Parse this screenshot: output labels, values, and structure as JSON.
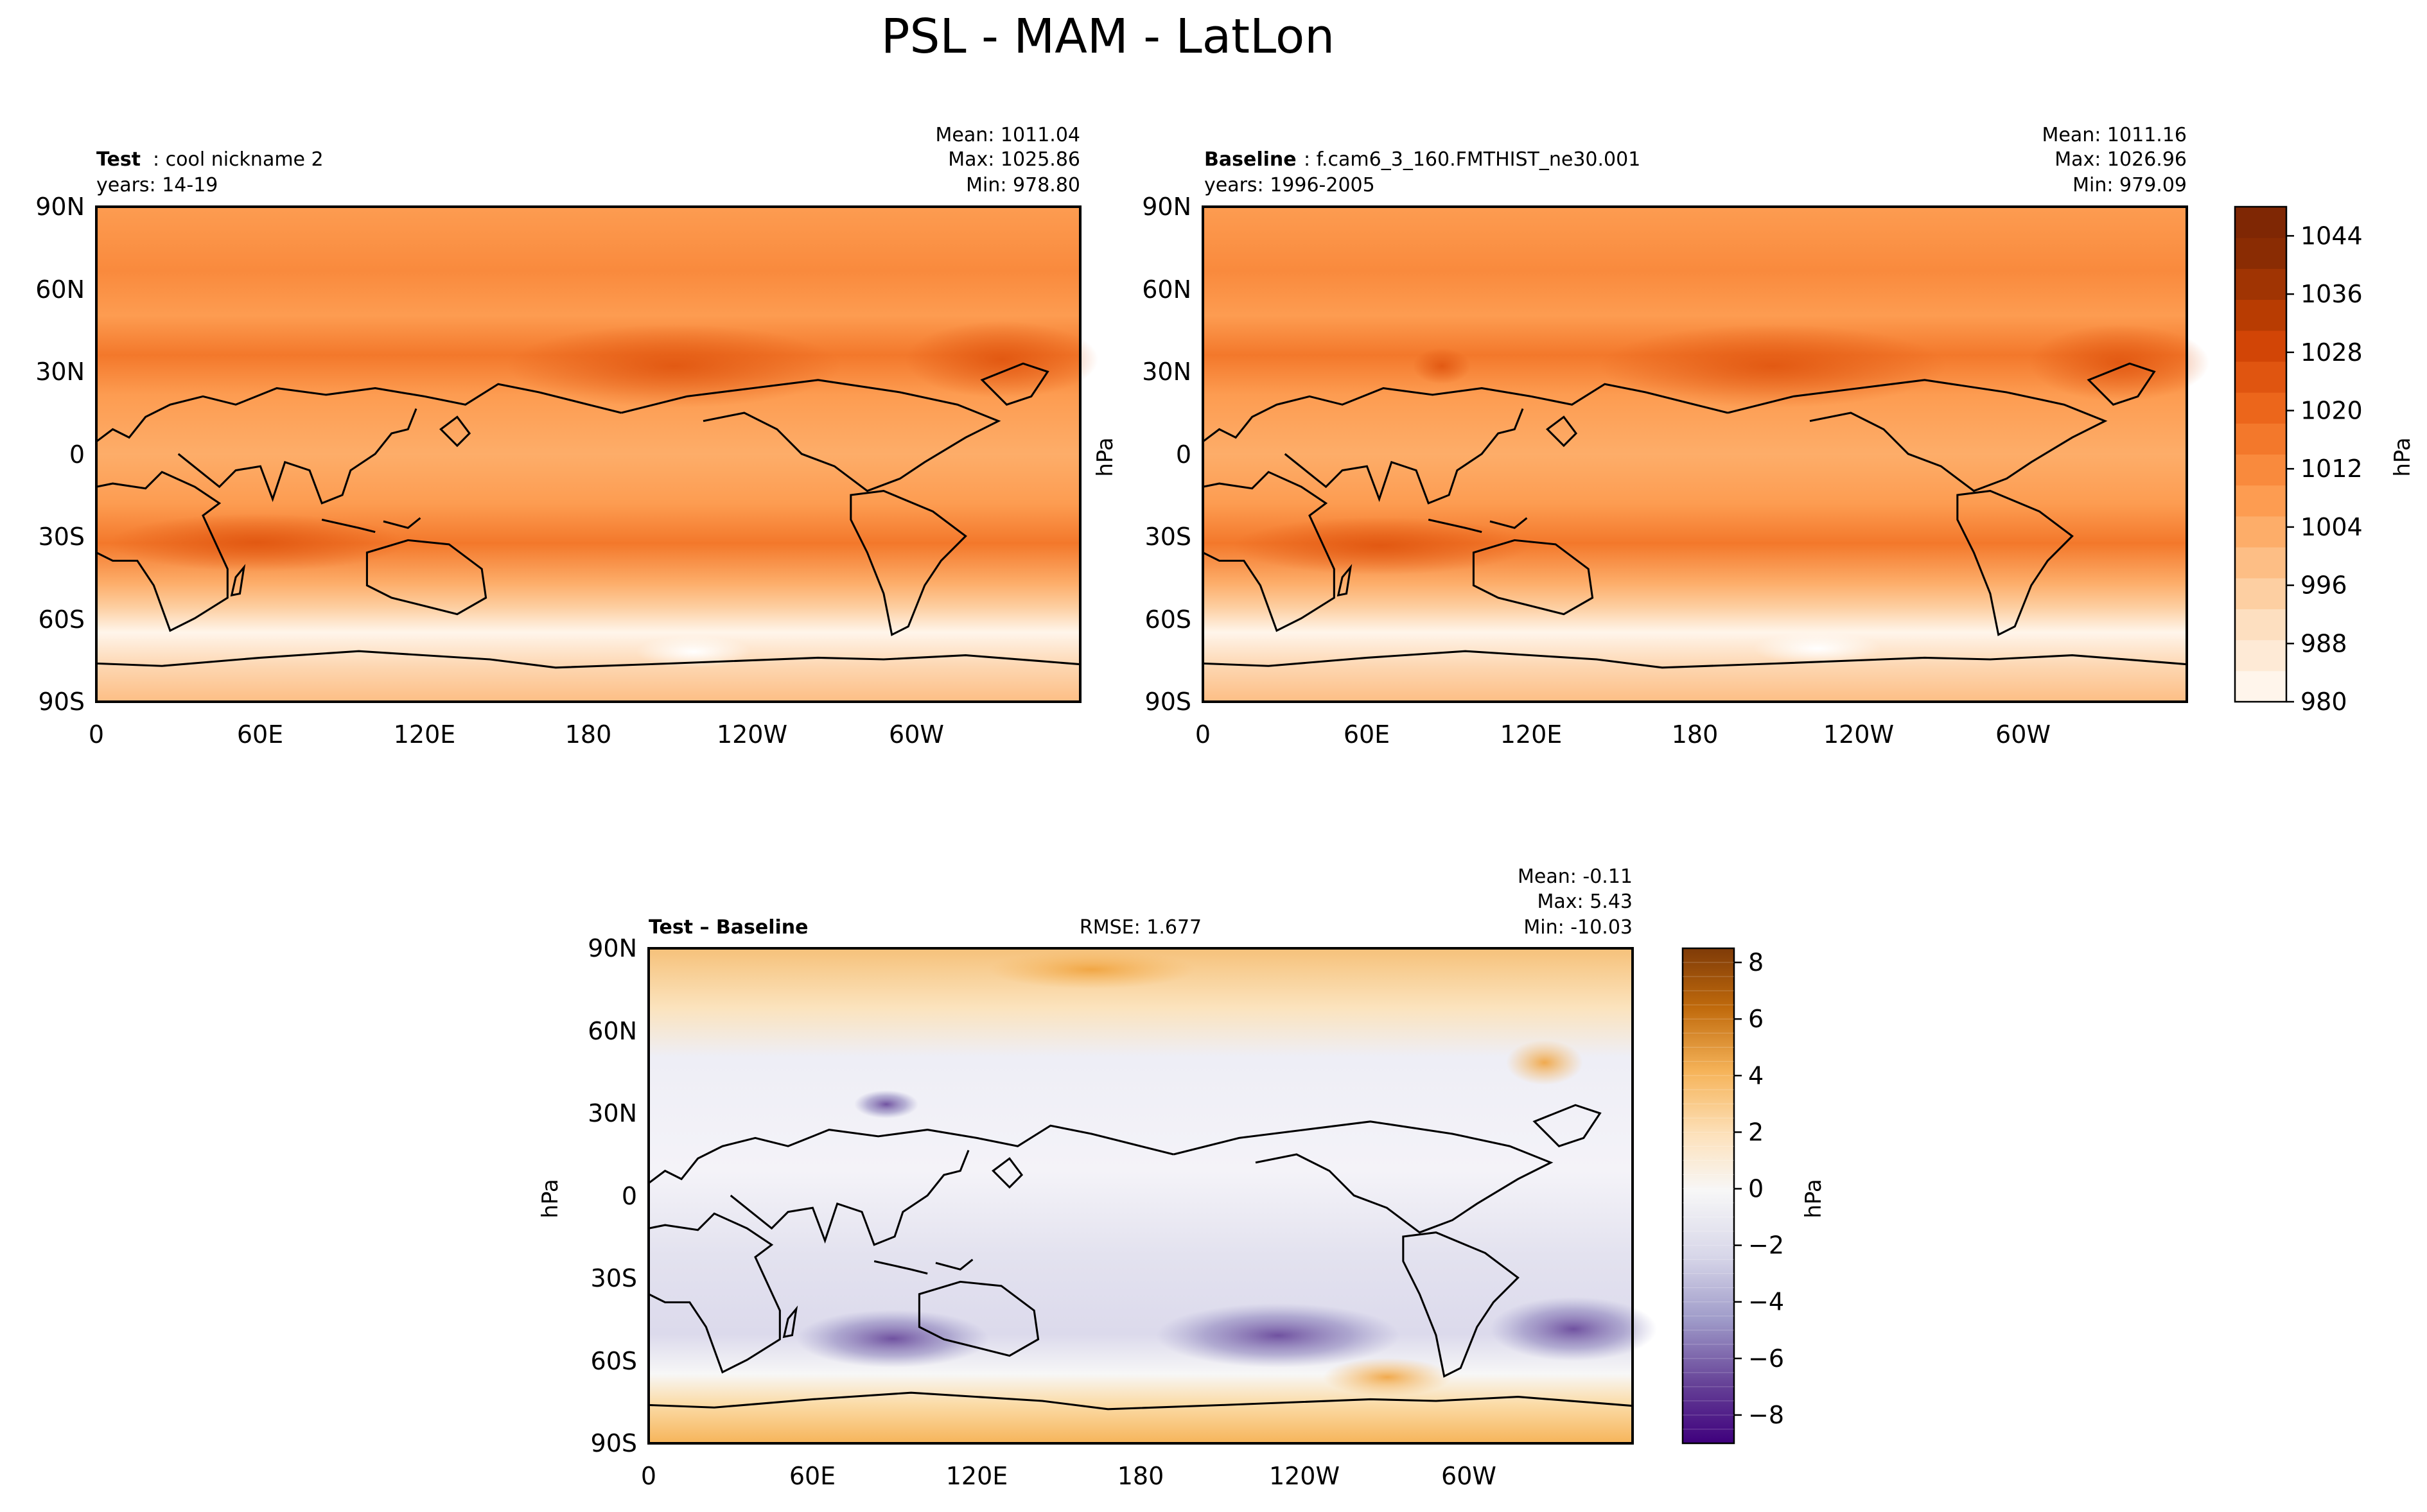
{
  "figure_title": "PSL - MAM - LatLon",
  "colors": {
    "orange_scale": [
      "#fff5eb",
      "#feead6",
      "#fddfc0",
      "#fdcfa2",
      "#fdbe85",
      "#fdad69",
      "#fd9c51",
      "#f98a3d",
      "#f3782b",
      "#ec661b",
      "#e05510",
      "#d24506",
      "#b83c02",
      "#a03403",
      "#8a2c03",
      "#7f2704"
    ],
    "diff_scale": {
      "neg_max": "#3f007d",
      "neg_mid": "#9f9bc9",
      "zero": "#f7f7f7",
      "pos_mid": "#f6b45a",
      "pos_max": "#7f3b08"
    },
    "coast": "#000000"
  },
  "chart_data": [
    {
      "type": "heatmap",
      "panel": "test",
      "label_bold": "Test",
      "label_text": ": cool nickname 2",
      "years": "years: 14-19",
      "stats": {
        "mean": "Mean: 1011.04",
        "max": "Max: 1025.86",
        "min": "Min: 978.80"
      },
      "x_ticks": [
        "0",
        "60E",
        "120E",
        "180",
        "120W",
        "60W"
      ],
      "y_ticks": [
        "90N",
        "60N",
        "30N",
        "0",
        "30S",
        "60S",
        "90S"
      ],
      "field": "PSL (hPa)"
    },
    {
      "type": "heatmap",
      "panel": "baseline",
      "label_bold": "Baseline",
      "label_text": ": f.cam6_3_160.FMTHIST_ne30.001",
      "years": "years: 1996-2005",
      "stats": {
        "mean": "Mean: 1011.16",
        "max": "Max: 1026.96",
        "min": "Min: 979.09"
      },
      "x_ticks": [
        "0",
        "60E",
        "120E",
        "180",
        "120W",
        "60W"
      ],
      "y_ticks": [
        "90N",
        "60N",
        "30N",
        "0",
        "30S",
        "60S",
        "90S"
      ],
      "colorbar": {
        "label": "hPa",
        "range": [
          980,
          1048
        ],
        "ticks": [
          "980",
          "988",
          "996",
          "1004",
          "1012",
          "1020",
          "1028",
          "1036",
          "1044"
        ]
      }
    },
    {
      "type": "heatmap",
      "panel": "difference",
      "label_bold": "Test – Baseline",
      "rmse": "RMSE: 1.677",
      "stats": {
        "mean": "Mean: -0.11",
        "max": "Max:  5.43",
        "min": "Min: -10.03"
      },
      "x_ticks": [
        "0",
        "60E",
        "120E",
        "180",
        "120W",
        "60W"
      ],
      "y_ticks": [
        "90N",
        "60N",
        "30N",
        "0",
        "30S",
        "60S",
        "90S"
      ],
      "ylabel": "hPa",
      "colorbar": {
        "label": "hPa",
        "range": [
          -9,
          8.5
        ],
        "ticks": [
          "8",
          "6",
          "4",
          "2",
          "0",
          "−2",
          "−4",
          "−6",
          "−8"
        ]
      }
    }
  ]
}
